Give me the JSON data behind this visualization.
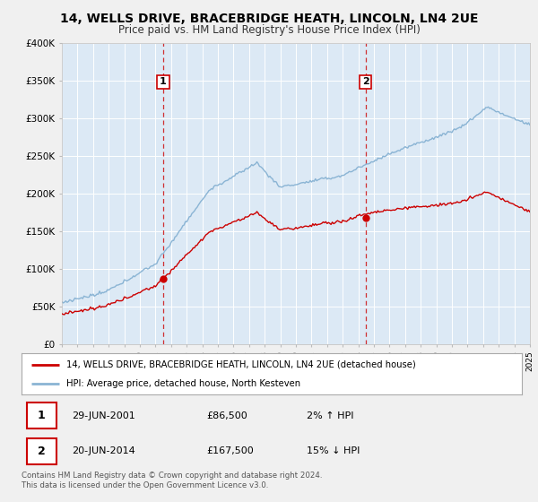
{
  "title": "14, WELLS DRIVE, BRACEBRIDGE HEATH, LINCOLN, LN4 2UE",
  "subtitle": "Price paid vs. HM Land Registry's House Price Index (HPI)",
  "sale1_date": 2001.49,
  "sale1_price": 86500,
  "sale2_date": 2014.47,
  "sale2_price": 167500,
  "legend_red": "14, WELLS DRIVE, BRACEBRIDGE HEATH, LINCOLN, LN4 2UE (detached house)",
  "legend_blue": "HPI: Average price, detached house, North Kesteven",
  "footer": "Contains HM Land Registry data © Crown copyright and database right 2024.\nThis data is licensed under the Open Government Licence v3.0.",
  "xmin": 1995,
  "xmax": 2025,
  "ymin": 0,
  "ymax": 400000,
  "bg_color": "#dce9f5",
  "fig_bg": "#f0f0f0",
  "grid_color": "#ffffff",
  "red_color": "#cc0000",
  "blue_color": "#8ab4d4",
  "yticks": [
    0,
    50000,
    100000,
    150000,
    200000,
    250000,
    300000,
    350000,
    400000
  ],
  "ylabels": [
    "£0",
    "£50K",
    "£100K",
    "£150K",
    "£200K",
    "£250K",
    "£300K",
    "£350K",
    "£400K"
  ]
}
